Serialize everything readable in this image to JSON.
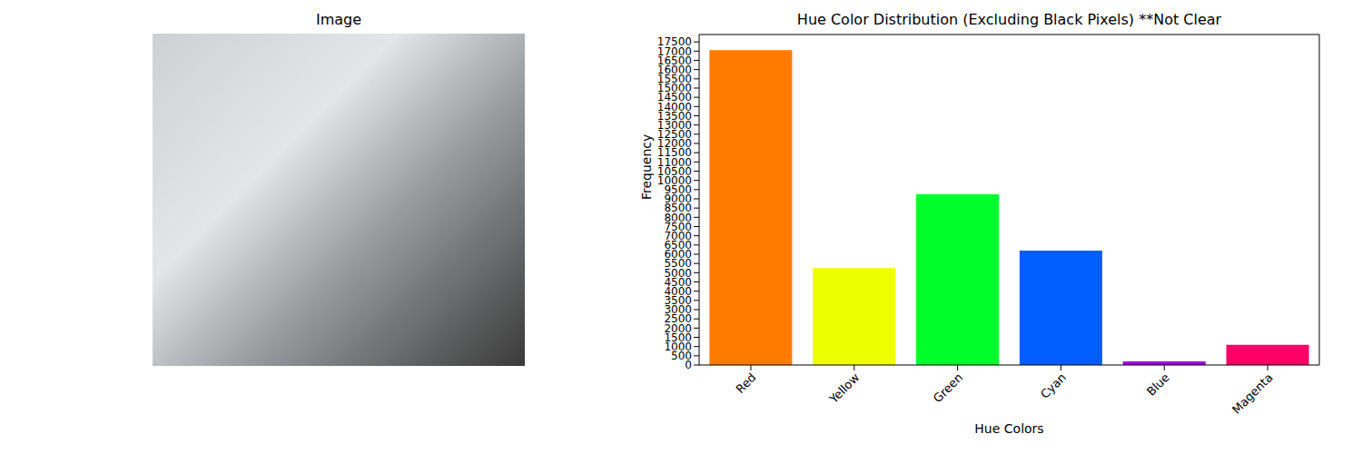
{
  "image": {
    "title": "Image"
  },
  "chart_data": {
    "type": "bar",
    "title": "Hue Color Distribution (Excluding Black Pixels) **Not Clear",
    "x_label": "Hue Colors",
    "y_label": "Frequency",
    "categories": [
      "Red",
      "Yellow",
      "Green",
      "Cyan",
      "Blue",
      "Magenta"
    ],
    "values": [
      17050,
      5250,
      9250,
      6200,
      200,
      1100
    ],
    "colors": [
      "#ff7b00",
      "#eeff00",
      "#00ff2a",
      "#005eff",
      "#a100e6",
      "#ff0066"
    ],
    "ylim": [
      0,
      17900
    ],
    "yticks": [
      0,
      500,
      1000,
      1500,
      2000,
      2500,
      3000,
      3500,
      4000,
      4500,
      5000,
      5500,
      6000,
      6500,
      7000,
      7500,
      8000,
      8500,
      9000,
      9500,
      10000,
      10500,
      11000,
      11500,
      12000,
      12500,
      13000,
      13500,
      14000,
      14500,
      15000,
      15500,
      16000,
      16500,
      17000,
      17500
    ],
    "grid": false
  }
}
